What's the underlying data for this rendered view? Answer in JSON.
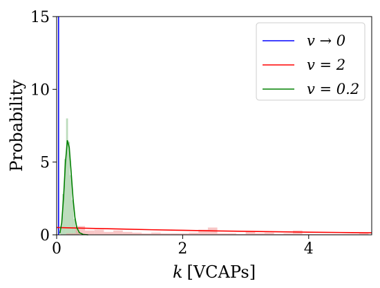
{
  "chart_data": {
    "type": "line",
    "xlabel": "k [VCAPs]",
    "xlabel_parts": {
      "var": "k",
      "unit": "[VCAPs]"
    },
    "ylabel": "Probability",
    "xlim": [
      0,
      5
    ],
    "ylim": [
      0,
      15
    ],
    "xticks": [
      "0",
      "2",
      "4"
    ],
    "xtick_values": [
      0,
      2,
      4
    ],
    "yticks": [
      "0",
      "5",
      "10",
      "15"
    ],
    "ytick_values": [
      0,
      5,
      10,
      15
    ],
    "grid": false,
    "legend_position": "top-right",
    "colors": {
      "blue": "#0000ff",
      "red": "#ff0000",
      "green": "#008000",
      "red_hist": "#f4a0a0",
      "green_hist": "#8fc58f"
    },
    "series": [
      {
        "name": "v → 0",
        "color": "#0000ff",
        "x": [
          0.03,
          0.03
        ],
        "y": [
          0,
          15
        ]
      },
      {
        "name": "v = 2",
        "color": "#ff0000",
        "x": [
          0,
          0.5,
          1,
          1.5,
          2,
          2.5,
          3,
          3.5,
          4,
          4.5,
          5
        ],
        "y": [
          0.5,
          0.45,
          0.4,
          0.35,
          0.31,
          0.27,
          0.24,
          0.21,
          0.18,
          0.16,
          0.14
        ]
      },
      {
        "name": "v = 0.2",
        "color": "#008000",
        "x": [
          0.05,
          0.08,
          0.11,
          0.14,
          0.17,
          0.2,
          0.23,
          0.26,
          0.29,
          0.32,
          0.36,
          0.42,
          0.5
        ],
        "y": [
          0.1,
          0.8,
          2.6,
          5.0,
          6.5,
          6.0,
          4.3,
          2.5,
          1.2,
          0.5,
          0.15,
          0.03,
          0.0
        ]
      }
    ],
    "histograms": [
      {
        "of_series": "v = 0.2",
        "color": "#8fc58f",
        "bin_edges": [
          0.06,
          0.09,
          0.12,
          0.15,
          0.18,
          0.21,
          0.24,
          0.27,
          0.3,
          0.33,
          0.36
        ],
        "counts": [
          0.6,
          2.8,
          5.2,
          8.0,
          6.4,
          4.1,
          2.4,
          1.1,
          0.5,
          0.2
        ]
      },
      {
        "of_series": "v = 2",
        "color": "#f4a0a0",
        "bin_edges": [
          0.0,
          0.15,
          0.3,
          0.45,
          0.6,
          0.75,
          0.9,
          1.05,
          1.2,
          1.35,
          1.5,
          1.65,
          1.8,
          1.95,
          2.1,
          2.25,
          2.4,
          2.55,
          2.7,
          2.85,
          3.0,
          3.15,
          3.3,
          3.45,
          3.6,
          3.75,
          3.9,
          4.05,
          4.2,
          4.35,
          4.5,
          4.65,
          4.8,
          4.95
        ],
        "counts": [
          0.0,
          0.1,
          0.6,
          0.3,
          0.35,
          0.2,
          0.3,
          0.2,
          0.15,
          0.1,
          0.15,
          0.1,
          0.1,
          0.1,
          0.15,
          0.35,
          0.5,
          0.1,
          0.1,
          0.05,
          0.2,
          0.1,
          0.15,
          0.05,
          0.1,
          0.3,
          0.05,
          0.05,
          0.05,
          0.05,
          0.05,
          0.05,
          0.1
        ]
      }
    ],
    "legend": [
      {
        "label": "v → 0",
        "color": "#0000ff"
      },
      {
        "label": "v = 2",
        "color": "#ff0000"
      },
      {
        "label": "v = 0.2",
        "color": "#008000"
      }
    ]
  }
}
